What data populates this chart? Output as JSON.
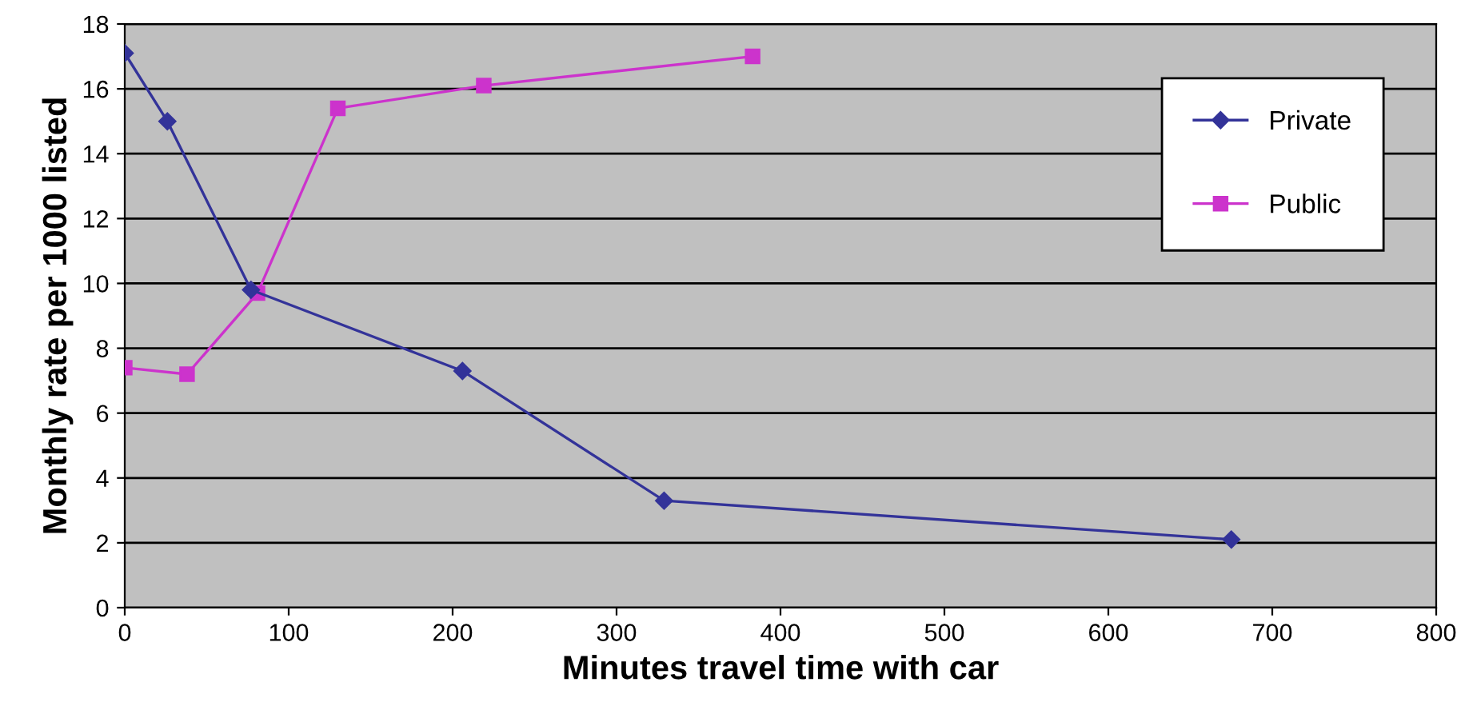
{
  "chart_data": {
    "type": "line",
    "xlabel": "Minutes travel time with car",
    "ylabel": "Monthly rate per 1000 listed",
    "xlim": [
      0,
      800
    ],
    "xticks": [
      0,
      100,
      200,
      300,
      400,
      500,
      600,
      700,
      800
    ],
    "ylim": [
      0,
      18
    ],
    "yticks": [
      0,
      2,
      4,
      6,
      8,
      10,
      12,
      14,
      16,
      18
    ],
    "grid": "y",
    "legend": "top right",
    "line_style": "solid",
    "series": [
      {
        "name": "Private",
        "color": "#333399",
        "marker": "diamond",
        "x": [
          0,
          26,
          77,
          206,
          329,
          675
        ],
        "values": [
          17.1,
          15.0,
          9.8,
          7.3,
          3.3,
          2.1
        ]
      },
      {
        "name": "Public",
        "color": "#cc33cc",
        "marker": "square",
        "x": [
          0,
          38,
          81,
          130,
          219,
          383
        ],
        "values": [
          7.4,
          7.2,
          9.7,
          15.4,
          16.1,
          17.0
        ]
      }
    ]
  }
}
